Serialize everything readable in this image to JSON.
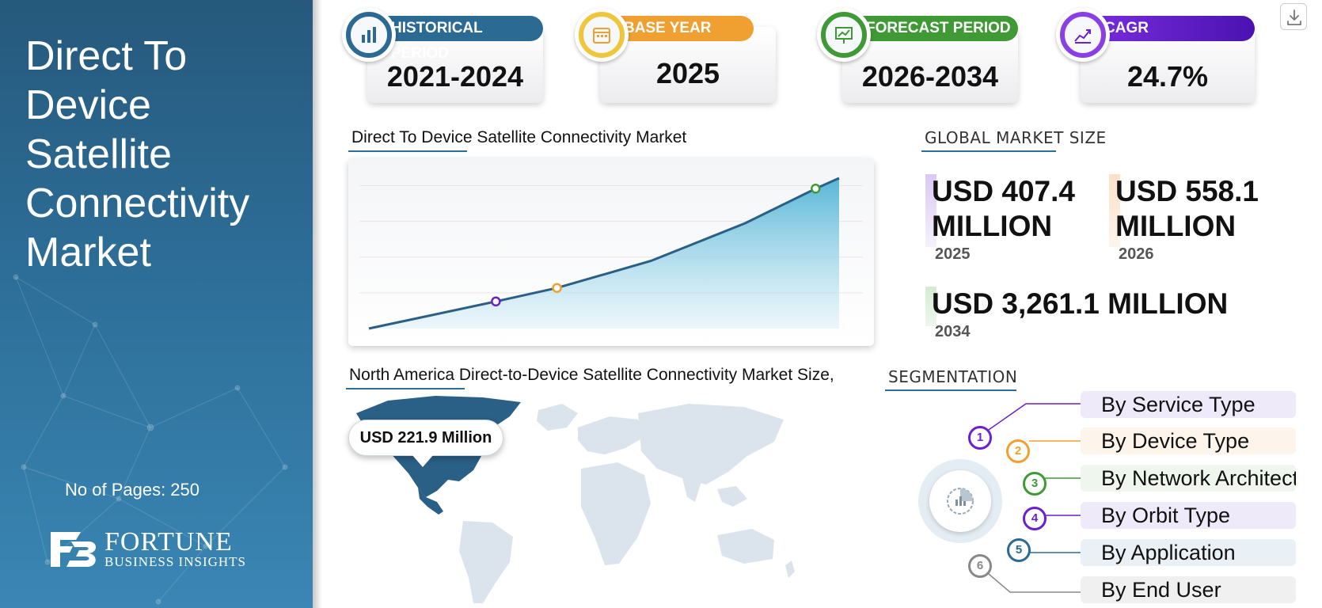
{
  "title": "Direct To Device Satellite Connectivity Market",
  "pages": "No of Pages: 250",
  "logo": {
    "name": "FORTUNE",
    "tagline": "BUSINESS INSIGHTS"
  },
  "stats": [
    {
      "label": "HISTORICAL PERIOD",
      "value": "2021-2024",
      "color": "#2a6a93",
      "icon": "bar-chart-icon"
    },
    {
      "label": "BASE YEAR",
      "value": "2025",
      "color": "#f0a030",
      "icon": "calendar-icon"
    },
    {
      "label": "FORECAST PERIOD",
      "value": "2026-2034",
      "color": "#3f9a35",
      "icon": "presentation-chart-icon"
    },
    {
      "label": "CAGR",
      "value": "24.7%",
      "color": "#6a1fd0",
      "icon": "growth-chart-icon"
    }
  ],
  "chart_section_title": "Direct To Device Satellite Connectivity Market",
  "chart_data": {
    "type": "area",
    "title": "Direct To Device Satellite Connectivity Market",
    "xlabel": "",
    "ylabel": "",
    "grid": true,
    "points": [
      {
        "x": 0.0,
        "y": 0.0
      },
      {
        "x": 0.27,
        "y": 0.18
      },
      {
        "x": 0.4,
        "y": 0.27
      },
      {
        "x": 0.6,
        "y": 0.45
      },
      {
        "x": 0.8,
        "y": 0.7
      },
      {
        "x": 0.95,
        "y": 0.93
      },
      {
        "x": 1.0,
        "y": 1.0
      }
    ],
    "markers": [
      {
        "x": 0.27,
        "y": 0.18,
        "color": "#6a1fd0"
      },
      {
        "x": 0.4,
        "y": 0.27,
        "color": "#f0a030"
      },
      {
        "x": 0.95,
        "y": 0.93,
        "color": "#3f9a35"
      }
    ]
  },
  "market_size": {
    "heading": "GLOBAL MARKET SIZE",
    "items": [
      {
        "value": "USD 407.4 MILLION",
        "line1": "USD 407.4",
        "line2": "MILLION",
        "year": "2025",
        "color": "#d9c8f5"
      },
      {
        "value": "USD 558.1 MILLION",
        "line1": "USD 558.1",
        "line2": "MILLION",
        "year": "2026",
        "color": "#fbe1c8"
      },
      {
        "value": "USD 3,261.1 MILLION",
        "line1": "USD 3,261.1 MILLION",
        "line2": "",
        "year": "2034",
        "color": "#d4ecd2"
      }
    ]
  },
  "map_section": {
    "title": "North America Direct-to-Device Satellite Connectivity Market Size,",
    "callout": "USD 221.9 Million"
  },
  "segmentation": {
    "heading": "SEGMENTATION",
    "items": [
      {
        "num": "1",
        "label": "By Service Type",
        "color": "#6a1fd0",
        "bg": "#efeaf9"
      },
      {
        "num": "2",
        "label": "By Device Type",
        "color": "#f0a030",
        "bg": "#fdf5ec"
      },
      {
        "num": "3",
        "label": "By Network Architecture",
        "color": "#3f9a35",
        "bg": "#eef6ed"
      },
      {
        "num": "4",
        "label": "By Orbit Type",
        "color": "#6a1fd0",
        "bg": "#efeaf9"
      },
      {
        "num": "5",
        "label": "By Application",
        "color": "#2a6a93",
        "bg": "#eaf1f6"
      },
      {
        "num": "6",
        "label": "By End User",
        "color": "#888888",
        "bg": "#f0f0f0"
      }
    ]
  }
}
